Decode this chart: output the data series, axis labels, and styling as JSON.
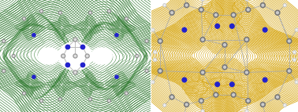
{
  "background_color": "#ffffff",
  "figure_width": 3.78,
  "figure_height": 1.43,
  "dpi": 100,
  "left_panel": {
    "green_dark": "#1a6b1a",
    "green_mid": "#2a7a2a",
    "green_light": "#3a8a3a",
    "white_center": "#ffffff",
    "gray_atom": "#909090",
    "blue_atom": "#2222cc",
    "light_gray": "#cccccc"
  },
  "right_panel": {
    "gold_dark": "#b88000",
    "gold_mid": "#d4a000",
    "gold_bright": "#e8b800",
    "gray_atom": "#808080",
    "blue_atom": "#2222cc",
    "white_atom": "#dddddd",
    "bg": "#ffffff"
  }
}
